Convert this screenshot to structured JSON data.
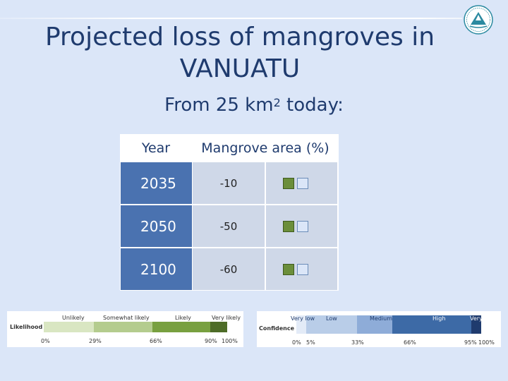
{
  "title": "Projected loss of mangroves in VANUATU",
  "subtitle": {
    "prefix": "From 25 km",
    "superscript": "2",
    "suffix": " today:"
  },
  "table": {
    "headers": {
      "year": "Year",
      "area": "Mangrove area (%)"
    },
    "rows": [
      {
        "year": "2035",
        "value": "-10",
        "confidence_filled": 1,
        "confidence_total": 2
      },
      {
        "year": "2050",
        "value": "-50",
        "confidence_filled": 1,
        "confidence_total": 2
      },
      {
        "year": "2100",
        "value": "-60",
        "confidence_filled": 1,
        "confidence_total": 2
      }
    ]
  },
  "likelihood_legend": {
    "label": "Likelihood",
    "categories": [
      "Unlikely",
      "Somewhat likely",
      "Likely",
      "Very likely"
    ],
    "percents": [
      "0%",
      "29%",
      "66%",
      "90%",
      "100%"
    ],
    "colors": [
      "#d9e6c2",
      "#b4cc8e",
      "#78a040",
      "#4e6c28"
    ]
  },
  "confidence_legend": {
    "label": "Confidence",
    "categories": [
      "Very low",
      "Low",
      "Medium",
      "High",
      "Very high"
    ],
    "percents": [
      "0%",
      "5%",
      "33%",
      "66%",
      "95%",
      "100%"
    ],
    "colors": [
      "#e3ebf7",
      "#b9cde8",
      "#8eacd8",
      "#3d6aa6",
      "#1f3b6e"
    ]
  },
  "colors": {
    "background": "#dbe6f8",
    "year_cell": "#4a72b0",
    "value_cell": "#cfd8e8",
    "title_text": "#1f3b6e"
  }
}
